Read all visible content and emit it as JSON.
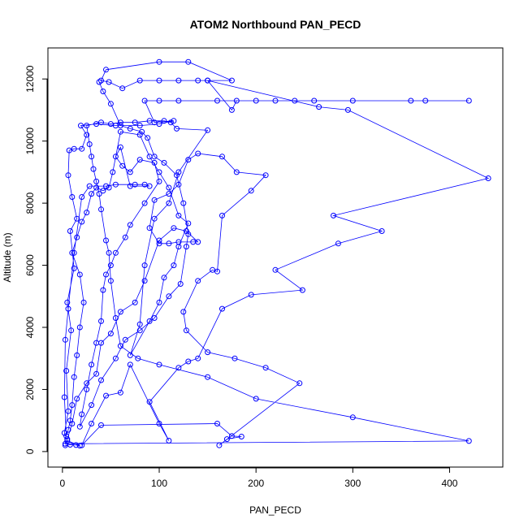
{
  "chart_data": {
    "type": "line",
    "title": "ATOM2 Northbound PAN_PECD",
    "xlabel": "PAN_PECD",
    "ylabel": "Altitude (m)",
    "xlim": [
      -15,
      455
    ],
    "ylim": [
      -500,
      13000
    ],
    "x_ticks": [
      0,
      100,
      200,
      300,
      400
    ],
    "y_ticks": [
      0,
      2000,
      4000,
      6000,
      8000,
      10000,
      12000
    ],
    "grid": false,
    "legend": "none",
    "series": [
      {
        "marker": "open-circle",
        "color": "#0000ff",
        "points": [
          [
            3,
            200
          ],
          [
            8,
            220
          ],
          [
            14,
            210
          ],
          [
            18,
            190
          ],
          [
            5,
            350
          ],
          [
            2,
            600
          ],
          [
            6,
            1300
          ],
          [
            4,
            2600
          ],
          [
            9,
            3900
          ],
          [
            5,
            4800
          ],
          [
            12,
            5900
          ],
          [
            8,
            7100
          ],
          [
            15,
            7500
          ],
          [
            10,
            8200
          ],
          [
            6,
            8900
          ],
          [
            7,
            9700
          ],
          [
            12,
            9750
          ],
          [
            20,
            9750
          ],
          [
            25,
            10200
          ],
          [
            19,
            10500
          ],
          [
            35,
            10550
          ],
          [
            55,
            10500
          ],
          [
            80,
            10500
          ],
          [
            100,
            10550
          ],
          [
            115,
            10650
          ],
          [
            95,
            10600
          ],
          [
            85,
            11300
          ],
          [
            100,
            11300
          ],
          [
            120,
            11300
          ],
          [
            160,
            11300
          ],
          [
            200,
            11300
          ],
          [
            260,
            11300
          ],
          [
            300,
            11300
          ],
          [
            360,
            11300
          ],
          [
            420,
            11300
          ],
          [
            375,
            11300
          ],
          [
            240,
            11300
          ],
          [
            220,
            11300
          ],
          [
            180,
            11300
          ],
          [
            175,
            11000
          ],
          [
            150,
            11950
          ],
          [
            140,
            11950
          ],
          [
            120,
            11950
          ],
          [
            100,
            11950
          ],
          [
            80,
            11950
          ],
          [
            62,
            11700
          ],
          [
            48,
            11900
          ],
          [
            40,
            11950
          ],
          [
            45,
            12300
          ],
          [
            100,
            12550
          ],
          [
            130,
            12550
          ],
          [
            175,
            11950
          ],
          [
            150,
            11950
          ],
          [
            265,
            11100
          ],
          [
            295,
            11000
          ],
          [
            440,
            8800
          ],
          [
            280,
            7600
          ],
          [
            330,
            7100
          ],
          [
            285,
            6700
          ],
          [
            220,
            5850
          ],
          [
            248,
            5200
          ],
          [
            195,
            5050
          ],
          [
            165,
            4600
          ],
          [
            140,
            3000
          ],
          [
            130,
            2900
          ],
          [
            120,
            2700
          ],
          [
            90,
            1600
          ],
          [
            110,
            350
          ],
          [
            100,
            900
          ],
          [
            70,
            2800
          ],
          [
            60,
            1900
          ],
          [
            45,
            1800
          ],
          [
            30,
            900
          ],
          [
            20,
            200
          ],
          [
            40,
            850
          ],
          [
            160,
            900
          ],
          [
            175,
            500
          ],
          [
            185,
            480
          ],
          [
            170,
            400
          ],
          [
            162,
            200
          ],
          [
            245,
            2200
          ],
          [
            210,
            2700
          ],
          [
            178,
            3000
          ],
          [
            150,
            3200
          ],
          [
            128,
            3900
          ],
          [
            125,
            4500
          ],
          [
            140,
            5500
          ],
          [
            155,
            5850
          ],
          [
            160,
            5800
          ],
          [
            165,
            7600
          ],
          [
            195,
            8400
          ],
          [
            210,
            8900
          ],
          [
            180,
            9000
          ],
          [
            165,
            9500
          ],
          [
            140,
            9600
          ],
          [
            130,
            9400
          ],
          [
            120,
            8600
          ],
          [
            110,
            8300
          ],
          [
            95,
            8100
          ],
          [
            90,
            7200
          ],
          [
            100,
            6700
          ],
          [
            110,
            6700
          ],
          [
            120,
            6750
          ],
          [
            135,
            6750
          ],
          [
            140,
            6750
          ],
          [
            128,
            7100
          ],
          [
            115,
            7200
          ],
          [
            100,
            6800
          ],
          [
            85,
            5500
          ],
          [
            75,
            4800
          ],
          [
            60,
            4500
          ],
          [
            50,
            3800
          ],
          [
            40,
            3500
          ],
          [
            35,
            2500
          ],
          [
            25,
            2200
          ],
          [
            15,
            1700
          ],
          [
            10,
            900
          ],
          [
            5,
            400
          ],
          [
            3,
            250
          ],
          [
            420,
            340
          ],
          [
            300,
            1100
          ],
          [
            200,
            1700
          ],
          [
            150,
            2400
          ],
          [
            100,
            2800
          ],
          [
            78,
            3000
          ],
          [
            60,
            3400
          ],
          [
            55,
            4300
          ],
          [
            50,
            5500
          ],
          [
            48,
            6400
          ],
          [
            45,
            6800
          ],
          [
            40,
            7800
          ],
          [
            38,
            8300
          ],
          [
            35,
            8700
          ],
          [
            32,
            9100
          ],
          [
            30,
            9500
          ],
          [
            28,
            9900
          ],
          [
            25,
            10500
          ],
          [
            40,
            10600
          ],
          [
            50,
            10550
          ],
          [
            60,
            10600
          ],
          [
            75,
            10600
          ],
          [
            90,
            10650
          ],
          [
            105,
            10650
          ],
          [
            112,
            10600
          ],
          [
            118,
            10400
          ],
          [
            150,
            10350
          ],
          [
            120,
            9000
          ],
          [
            110,
            8000
          ],
          [
            95,
            7500
          ],
          [
            85,
            6000
          ],
          [
            80,
            4100
          ],
          [
            70,
            3100
          ],
          [
            90,
            4200
          ],
          [
            100,
            4800
          ],
          [
            105,
            5600
          ],
          [
            115,
            6000
          ],
          [
            120,
            6600
          ],
          [
            130,
            7350
          ],
          [
            120,
            7600
          ],
          [
            110,
            8500
          ],
          [
            100,
            9000
          ],
          [
            90,
            9500
          ],
          [
            80,
            10200
          ],
          [
            60,
            10300
          ],
          [
            52,
            9000
          ],
          [
            48,
            8500
          ],
          [
            42,
            8400
          ],
          [
            35,
            8500
          ],
          [
            30,
            8300
          ],
          [
            25,
            7700
          ],
          [
            20,
            7400
          ],
          [
            15,
            6900
          ],
          [
            10,
            6400
          ],
          [
            18,
            5700
          ],
          [
            22,
            4800
          ],
          [
            18,
            4000
          ],
          [
            15,
            3100
          ],
          [
            12,
            2400
          ],
          [
            10,
            1500
          ],
          [
            8,
            1000
          ],
          [
            6,
            700
          ],
          [
            4,
            500
          ],
          [
            2,
            1750
          ],
          [
            3,
            3600
          ],
          [
            6,
            4600
          ],
          [
            12,
            6400
          ],
          [
            20,
            8200
          ],
          [
            28,
            8550
          ],
          [
            45,
            8550
          ],
          [
            55,
            8600
          ],
          [
            75,
            8600
          ],
          [
            85,
            8600
          ],
          [
            90,
            8550
          ],
          [
            70,
            8550
          ],
          [
            60,
            9800
          ],
          [
            55,
            9500
          ],
          [
            62,
            9200
          ],
          [
            70,
            9000
          ],
          [
            80,
            9400
          ],
          [
            95,
            9300
          ],
          [
            100,
            8700
          ],
          [
            85,
            8000
          ],
          [
            70,
            7300
          ],
          [
            65,
            6900
          ],
          [
            55,
            6400
          ],
          [
            50,
            6000
          ],
          [
            45,
            5700
          ],
          [
            42,
            5200
          ],
          [
            40,
            4200
          ],
          [
            35,
            3500
          ],
          [
            30,
            2800
          ],
          [
            25,
            2000
          ],
          [
            20,
            1200
          ],
          [
            18,
            800
          ],
          [
            30,
            1500
          ],
          [
            40,
            2300
          ],
          [
            55,
            3000
          ],
          [
            65,
            3600
          ],
          [
            80,
            3900
          ],
          [
            95,
            4300
          ],
          [
            110,
            5000
          ],
          [
            122,
            5400
          ],
          [
            128,
            6600
          ],
          [
            130,
            7000
          ],
          [
            125,
            8000
          ],
          [
            118,
            8900
          ],
          [
            105,
            9300
          ],
          [
            95,
            9500
          ],
          [
            88,
            10100
          ],
          [
            82,
            10300
          ],
          [
            70,
            10400
          ],
          [
            60,
            10500
          ],
          [
            50,
            11200
          ],
          [
            42,
            11600
          ],
          [
            38,
            11900
          ]
        ]
      }
    ]
  }
}
